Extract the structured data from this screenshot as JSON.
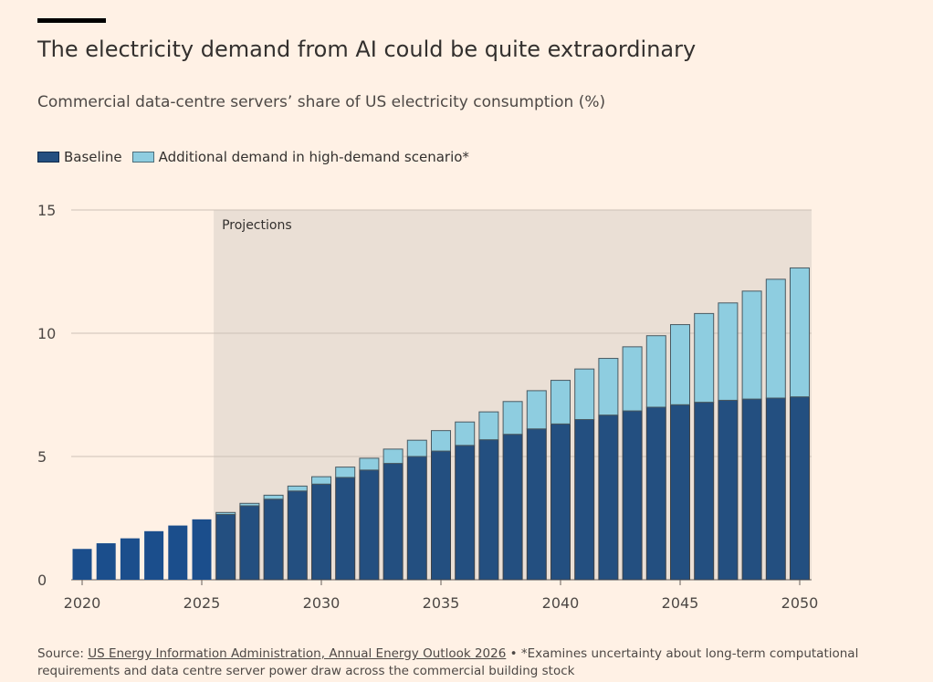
{
  "header": {
    "title": "The electricity demand from AI could be quite extraordinary",
    "subtitle": "Commercial data-centre servers’ share of US electricity consumption (%)"
  },
  "legend": {
    "baseline_label": "Baseline",
    "additional_label": "Additional demand in high-demand scenario*"
  },
  "footer": {
    "source_prefix": "Source: ",
    "source_link": "US Energy Information Administration, Annual Energy Outlook 2026",
    "source_note": " • *Examines uncertainty about long-term computational requirements and data centre server power draw across the commercial building stock"
  },
  "colors": {
    "background": "#fff1e5",
    "baseline_hist": "#1b4e8c",
    "baseline_proj": "#234f80",
    "additional": "#8ecde0",
    "projection_shade": "#eadfd5"
  },
  "chart_data": {
    "type": "bar",
    "stacked": true,
    "x": [
      2020,
      2021,
      2022,
      2023,
      2024,
      2025,
      2026,
      2027,
      2028,
      2029,
      2030,
      2031,
      2032,
      2033,
      2034,
      2035,
      2036,
      2037,
      2038,
      2039,
      2040,
      2041,
      2042,
      2043,
      2044,
      2045,
      2046,
      2047,
      2048,
      2049,
      2050
    ],
    "series": [
      {
        "name": "Baseline",
        "values": [
          1.25,
          1.48,
          1.68,
          1.97,
          2.2,
          2.45,
          2.65,
          3.0,
          3.27,
          3.6,
          3.88,
          4.15,
          4.45,
          4.72,
          5.0,
          5.22,
          5.45,
          5.68,
          5.9,
          6.12,
          6.32,
          6.5,
          6.68,
          6.85,
          7.0,
          7.1,
          7.2,
          7.28,
          7.33,
          7.37,
          7.42
        ]
      },
      {
        "name": "Additional demand in high-demand scenario*",
        "values": [
          0,
          0,
          0,
          0,
          0,
          0,
          0.08,
          0.1,
          0.16,
          0.2,
          0.3,
          0.42,
          0.48,
          0.58,
          0.66,
          0.83,
          0.95,
          1.13,
          1.33,
          1.55,
          1.77,
          2.05,
          2.3,
          2.6,
          2.9,
          3.25,
          3.6,
          3.95,
          4.38,
          4.82,
          5.23
        ]
      }
    ],
    "projection_start": 2026,
    "projection_label": "Projections",
    "ylim": [
      0,
      15
    ],
    "yticks": [
      0,
      5,
      10,
      15
    ],
    "xticks": [
      2020,
      2025,
      2030,
      2035,
      2040,
      2045,
      2050
    ],
    "grid": true
  }
}
